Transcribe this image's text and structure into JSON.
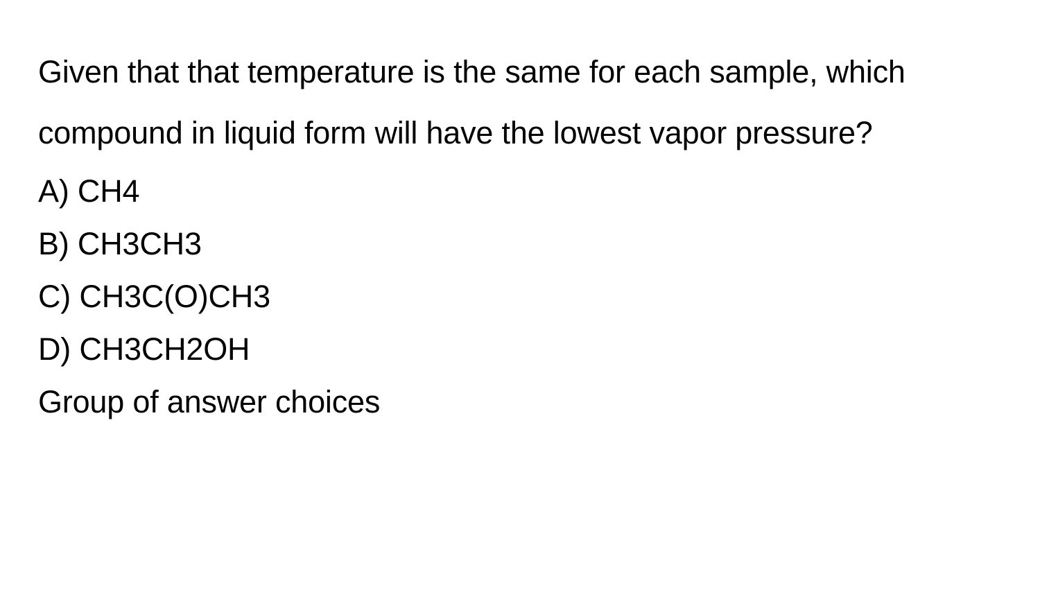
{
  "question": {
    "prompt": "Given that that temperature is the same for each sample, which compound in liquid form will have the lowest vapor pressure?",
    "choices": [
      {
        "label": "A)",
        "text": "CH4"
      },
      {
        "label": "B)",
        "text": "CH3CH3"
      },
      {
        "label": "C)",
        "text": "CH3C(O)CH3"
      },
      {
        "label": "D)",
        "text": "CH3CH2OH"
      }
    ],
    "footer": "Group of answer choices"
  },
  "style": {
    "background_color": "#ffffff",
    "text_color": "#000000",
    "font_size_pt": 34,
    "line_height": 1.95,
    "choice_line_height": 1.6,
    "font_weight": 400
  }
}
